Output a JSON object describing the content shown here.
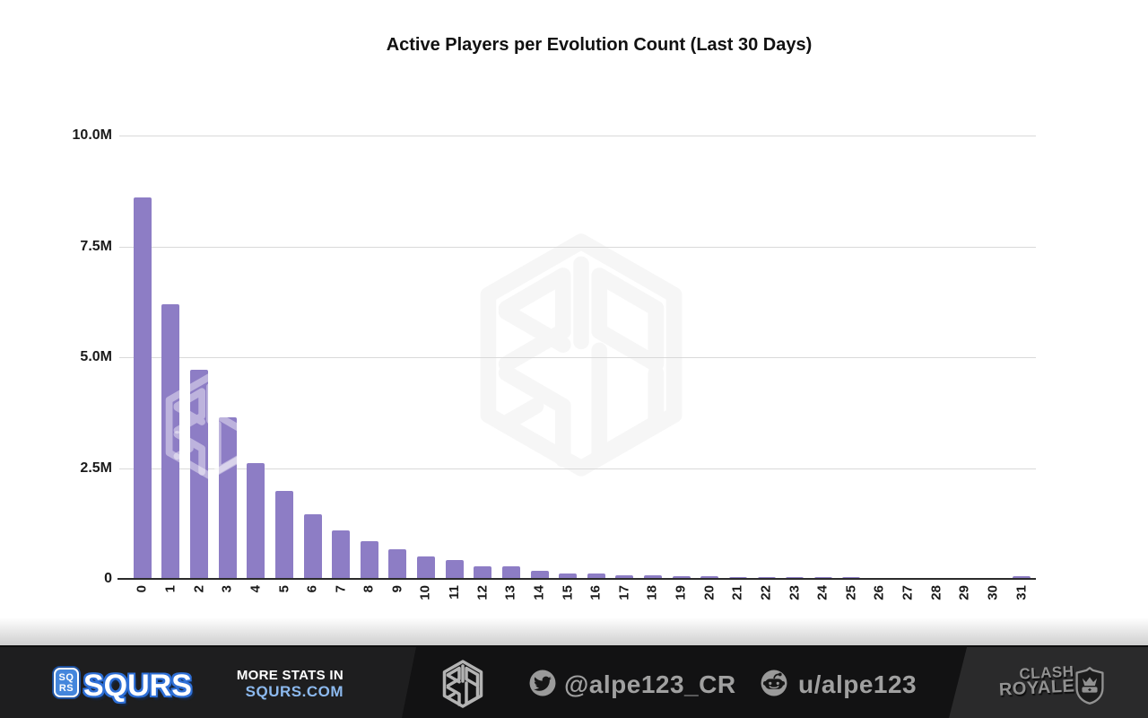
{
  "title": "Active Players per Evolution Count (Last 30 Days)",
  "chart_data": {
    "type": "bar",
    "title": "Active Players per Evolution Count (Last 30 Days)",
    "xlabel": "",
    "ylabel": "",
    "categories": [
      "0",
      "1",
      "2",
      "3",
      "4",
      "5",
      "6",
      "7",
      "8",
      "9",
      "10",
      "11",
      "12",
      "13",
      "14",
      "15",
      "16",
      "17",
      "18",
      "19",
      "20",
      "21",
      "22",
      "23",
      "24",
      "25",
      "26",
      "27",
      "28",
      "29",
      "30",
      "31"
    ],
    "values_millions": [
      8.6,
      6.2,
      4.72,
      3.64,
      2.62,
      1.98,
      1.46,
      1.09,
      0.85,
      0.67,
      0.51,
      0.43,
      0.29,
      0.28,
      0.18,
      0.12,
      0.13,
      0.08,
      0.09,
      0.06,
      0.06,
      0.05,
      0.05,
      0.04,
      0.04,
      0.04,
      0.03,
      0.03,
      0.03,
      0.03,
      0.03,
      0.06
    ],
    "ylim": [
      0,
      10
    ],
    "yticks": [
      {
        "label": "0",
        "value": 0
      },
      {
        "label": "2.5M",
        "value": 2.5
      },
      {
        "label": "5.0M",
        "value": 5
      },
      {
        "label": "7.5M",
        "value": 7.5
      },
      {
        "label": "10.0M",
        "value": 10
      }
    ],
    "grid": "horizontal",
    "legend": "none",
    "bar_color": "#8d7dc5"
  },
  "footer": {
    "badge_line1": "SQ",
    "badge_line2": "RS",
    "brand": "SQURS",
    "promo_line1": "MORE STATS IN",
    "promo_line2": "SQURS.COM",
    "twitter_handle": "@alpe123_CR",
    "reddit_handle": "u/alpe123",
    "cr_line1": "CLASH",
    "cr_line2": "ROYALE",
    "colors": {
      "accent_blue": "#4486dc",
      "promo_blue": "#8cb9ee",
      "text_gray": "#a0a0a0",
      "footer_bg": "#1e1e1f"
    }
  }
}
